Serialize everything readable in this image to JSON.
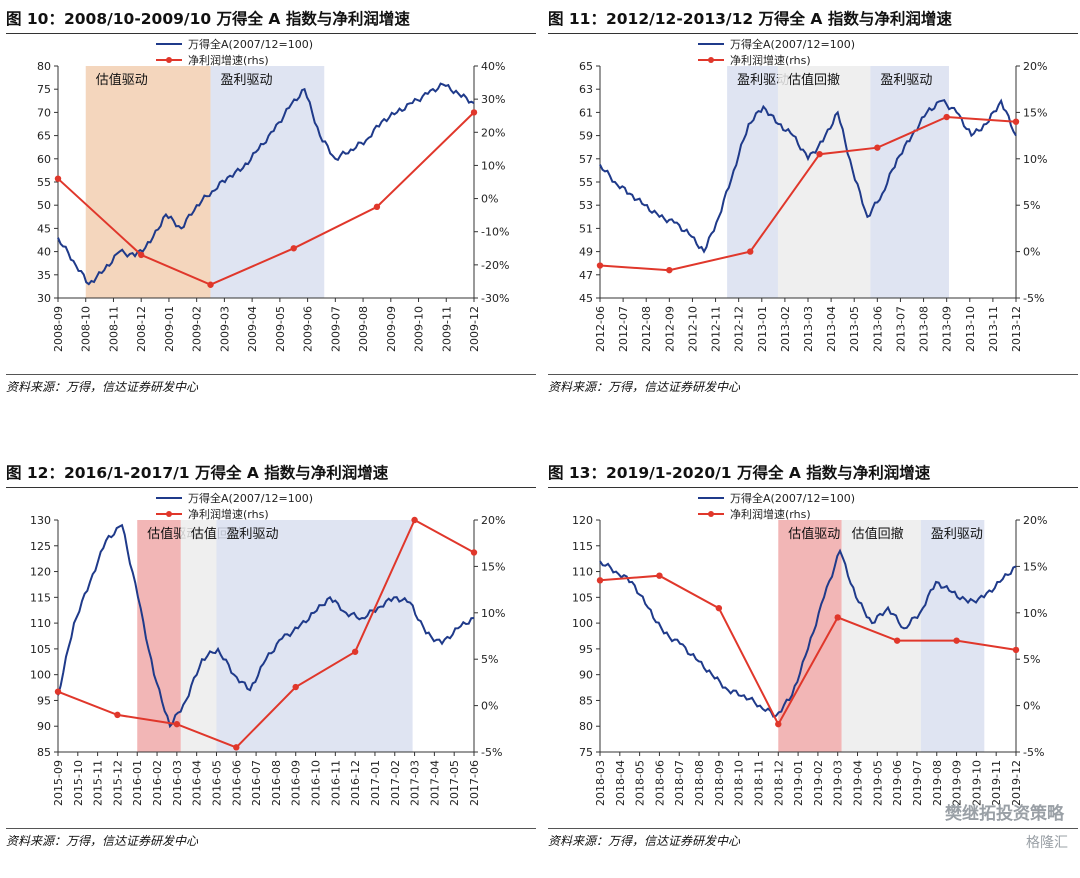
{
  "watermark": {
    "text": "樊继拓投资策略",
    "brand": "格隆汇"
  },
  "colors": {
    "index_line": "#1f3a8a",
    "growth_line": "#e0372b",
    "valuation_region": "#f2cfb2",
    "earnings_region": "#d9dff0",
    "pullback_region": "#ececec",
    "valuation_region_red": "#f0a9a9"
  },
  "panels": [
    {
      "title": "图 10：2008/10-2009/10 万得全 A 指数与净利润增速",
      "source": "资料来源：万得，信达证券研发中心",
      "chart_data": {
        "type": "line",
        "x_labels": [
          "2008-09",
          "2008-10",
          "2008-11",
          "2008-12",
          "2009-01",
          "2009-02",
          "2009-03",
          "2009-04",
          "2009-05",
          "2009-06",
          "2009-07",
          "2009-08",
          "2009-09",
          "2009-10",
          "2009-11",
          "2009-12"
        ],
        "left_axis": {
          "min": 30,
          "max": 80,
          "ticks": [
            30,
            35,
            40,
            45,
            50,
            55,
            60,
            65,
            70,
            75,
            80
          ]
        },
        "right_axis": {
          "min": -30,
          "max": 40,
          "ticks": [
            "-30%",
            "-20%",
            "-10%",
            "0%",
            "10%",
            "20%",
            "30%",
            "40%"
          ]
        },
        "series": [
          {
            "name": "万得全A(2007/12=100)",
            "axis": "left",
            "values": [
              43,
              38,
              33,
              36,
              40,
              39,
              42,
              48,
              45,
              50,
              53,
              56,
              58,
              62,
              66,
              71,
              75,
              65,
              60,
              62,
              64,
              68,
              70,
              72,
              74,
              76,
              74,
              72
            ]
          },
          {
            "name": "净利润增速(rhs)",
            "axis": "right",
            "points": [
              [
                0,
                6
              ],
              [
                3,
                -17
              ],
              [
                5.5,
                -26
              ],
              [
                8.5,
                -15
              ],
              [
                11.5,
                -2.5
              ],
              [
                15,
                26
              ]
            ]
          }
        ],
        "regions": [
          {
            "label": "估值驱动",
            "start": 1,
            "end": 5.5,
            "color": "#f2cfb2"
          },
          {
            "label": "盈利驱动",
            "start": 5.5,
            "end": 9.6,
            "color": "#d9dff0"
          }
        ],
        "legend": "top-center"
      }
    },
    {
      "title": "图 11：2012/12-2013/12 万得全 A 指数与净利润增速",
      "source": "资料来源：万得，信达证券研发中心",
      "chart_data": {
        "type": "line",
        "x_labels": [
          "2012-06",
          "2012-07",
          "2012-08",
          "2012-09",
          "2012-10",
          "2012-11",
          "2012-12",
          "2013-01",
          "2013-02",
          "2013-03",
          "2013-04",
          "2013-05",
          "2013-06",
          "2013-07",
          "2013-08",
          "2013-09",
          "2013-10",
          "2013-11",
          "2013-12"
        ],
        "left_axis": {
          "min": 45,
          "max": 65,
          "ticks": [
            45,
            47,
            49,
            51,
            53,
            55,
            57,
            59,
            61,
            63,
            65
          ]
        },
        "right_axis": {
          "min": -5,
          "max": 20,
          "ticks": [
            "-5%",
            "0%",
            "5%",
            "10%",
            "15%",
            "20%"
          ]
        },
        "series": [
          {
            "name": "万得全A(2007/12=100)",
            "axis": "left",
            "values": [
              56.5,
              55,
              54,
              53,
              52,
              51.5,
              50.5,
              49,
              52,
              56,
              60,
              61.5,
              60,
              59,
              57,
              58.5,
              61,
              56,
              52,
              54,
              57,
              59,
              61,
              62,
              61,
              59,
              60,
              62,
              59
            ]
          },
          {
            "name": "净利润增速(rhs)",
            "axis": "right",
            "points": [
              [
                0,
                -1.5
              ],
              [
                3,
                -2
              ],
              [
                6.5,
                0
              ],
              [
                9.5,
                10.5
              ],
              [
                12,
                11.2
              ],
              [
                15,
                14.5
              ],
              [
                18,
                14
              ]
            ]
          }
        ],
        "regions": [
          {
            "label": "盈利驱动",
            "start": 5.5,
            "end": 7.7,
            "color": "#d9dff0"
          },
          {
            "label": "估值回撤",
            "start": 7.7,
            "end": 11.7,
            "color": "#ececec"
          },
          {
            "label": "盈利驱动",
            "start": 11.7,
            "end": 15.1,
            "color": "#d9dff0"
          }
        ],
        "legend": "top-center"
      }
    },
    {
      "title": "图 12：2016/1-2017/1 万得全 A 指数与净利润增速",
      "source": "资料来源：万得，信达证券研发中心",
      "chart_data": {
        "type": "line",
        "x_labels": [
          "2015-09",
          "2015-10",
          "2015-11",
          "2015-12",
          "2016-01",
          "2016-02",
          "2016-03",
          "2016-04",
          "2016-05",
          "2016-06",
          "2016-07",
          "2016-08",
          "2016-09",
          "2016-10",
          "2016-11",
          "2016-12",
          "2017-01",
          "2017-02",
          "2017-03",
          "2017-04",
          "2017-05",
          "2017-06"
        ],
        "left_axis": {
          "min": 85,
          "max": 130,
          "ticks": [
            85,
            90,
            95,
            100,
            105,
            110,
            115,
            120,
            125,
            130
          ]
        },
        "right_axis": {
          "min": -5,
          "max": 20,
          "ticks": [
            "-5%",
            "0%",
            "5%",
            "10%",
            "15%",
            "20%"
          ]
        },
        "series": [
          {
            "name": "万得全A(2007/12=100)",
            "axis": "left",
            "values": [
              96,
              110,
              118,
              126,
              129,
              115,
              100,
              90,
              95,
              103,
              105,
              100,
              97,
              103,
              107,
              109,
              112,
              115,
              112,
              111,
              113,
              115,
              114,
              108,
              106,
              109,
              111
            ]
          },
          {
            "name": "净利润增速(rhs)",
            "axis": "right",
            "points": [
              [
                0,
                1.5
              ],
              [
                3,
                -1
              ],
              [
                6,
                -2
              ],
              [
                9,
                -4.5
              ],
              [
                12,
                2
              ],
              [
                15,
                5.8
              ],
              [
                18,
                20
              ],
              [
                21,
                16.5
              ]
            ]
          }
        ],
        "regions": [
          {
            "label": "估值驱动",
            "start": 4,
            "end": 6.2,
            "color": "#f0a9a9"
          },
          {
            "label": "估值回撤",
            "start": 6.2,
            "end": 8,
            "color": "#ececec"
          },
          {
            "label": "盈利驱动",
            "start": 8,
            "end": 17.9,
            "color": "#d9dff0"
          }
        ],
        "legend": "top-center"
      }
    },
    {
      "title": "图 13：2019/1-2020/1 万得全 A 指数与净利润增速",
      "source": "资料来源：万得，信达证券研发中心",
      "chart_data": {
        "type": "line",
        "x_labels": [
          "2018-03",
          "2018-04",
          "2018-05",
          "2018-06",
          "2018-07",
          "2018-08",
          "2018-09",
          "2018-10",
          "2018-11",
          "2018-12",
          "2019-01",
          "2019-02",
          "2019-03",
          "2019-04",
          "2019-05",
          "2019-06",
          "2019-07",
          "2019-08",
          "2019-09",
          "2019-10",
          "2019-11",
          "2019-12"
        ],
        "left_axis": {
          "min": 75,
          "max": 120,
          "ticks": [
            75,
            80,
            85,
            90,
            95,
            100,
            105,
            110,
            115,
            120
          ]
        },
        "right_axis": {
          "min": -5,
          "max": 20,
          "ticks": [
            "-5%",
            "0%",
            "5%",
            "10%",
            "15%",
            "20%"
          ]
        },
        "series": [
          {
            "name": "万得全A(2007/12=100)",
            "axis": "left",
            "values": [
              112,
              110,
              108,
              103,
              98,
              96,
              93,
              90,
              87,
              86,
              84,
              82,
              86,
              95,
              105,
              114,
              105,
              100,
              103,
              99,
              102,
              108,
              106,
              104,
              105,
              108,
              111
            ]
          },
          {
            "name": "净利润增速(rhs)",
            "axis": "right",
            "points": [
              [
                0,
                13.5
              ],
              [
                3,
                14
              ],
              [
                6,
                10.5
              ],
              [
                9,
                -2
              ],
              [
                12,
                9.5
              ],
              [
                15,
                7
              ],
              [
                18,
                7
              ],
              [
                21,
                6
              ]
            ]
          }
        ],
        "regions": [
          {
            "label": "估值驱动",
            "start": 9,
            "end": 12.2,
            "color": "#f0a9a9"
          },
          {
            "label": "估值回撤",
            "start": 12.2,
            "end": 16.2,
            "color": "#ececec"
          },
          {
            "label": "盈利驱动",
            "start": 16.2,
            "end": 19.4,
            "color": "#d9dff0"
          }
        ],
        "legend": "top-center"
      }
    }
  ]
}
